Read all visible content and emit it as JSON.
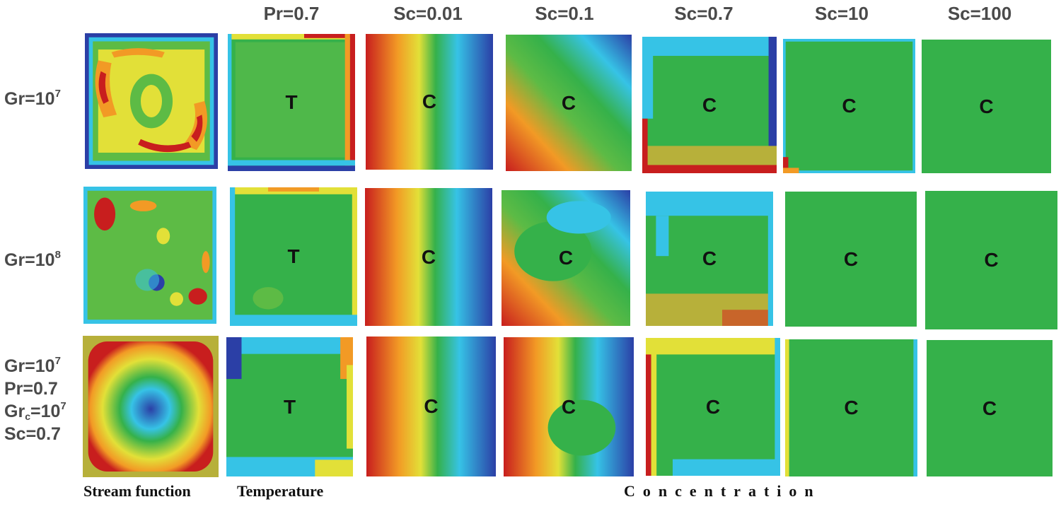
{
  "figure": {
    "column_headers": [
      "Pr=0.7",
      "Sc=0.01",
      "Sc=0.1",
      "Sc=0.7",
      "Sc=10",
      "Sc=100"
    ],
    "row_labels": {
      "row1": {
        "base": "Gr=10",
        "exp": "7"
      },
      "row2": {
        "base": "Gr=10",
        "exp": "8"
      },
      "row3": {
        "gr_base": "Gr=10",
        "gr_exp": "7",
        "pr": "Pr=0.7",
        "grc_base": "Gr",
        "grc_sub": "c",
        "grc_rest": "=10",
        "grc_exp": "7",
        "sc": "Sc=0.7"
      }
    },
    "panel_labels": {
      "temperature": "T",
      "concentration": "C"
    },
    "footer": {
      "stream": "Stream function",
      "temperature": "Temperature",
      "concentration": "Concentration"
    },
    "colors": {
      "red": "#d7191c",
      "orange": "#f7a125",
      "yellow": "#e8e23c",
      "green": "#35b14a",
      "cyan": "#36c3e6",
      "blue": "#2b3fa6"
    }
  }
}
